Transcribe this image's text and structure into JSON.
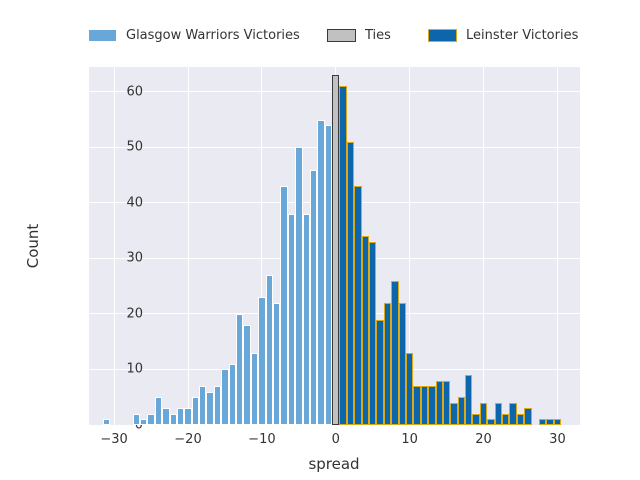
{
  "figure": {
    "background": "#ffffff",
    "plot_background": "#EAEAF2",
    "grid_color": "#ffffff",
    "text_color": "#333333"
  },
  "legend": {
    "items": [
      {
        "label": "Glasgow Warriors Victories",
        "fill": "#69A7D8",
        "edge": "#ffffff"
      },
      {
        "label": "Ties",
        "fill": "#C1C1C1",
        "edge": "#3A3A3A"
      },
      {
        "label": "Leinster Victories",
        "fill": "#0D66AA",
        "edge": "#DCA919"
      }
    ]
  },
  "axes": {
    "xlabel": "spread",
    "ylabel": "Count",
    "x_ticks": [
      {
        "v": -30,
        "label": "−30"
      },
      {
        "v": -20,
        "label": "−20"
      },
      {
        "v": -10,
        "label": "−10"
      },
      {
        "v": 0,
        "label": "0"
      },
      {
        "v": 10,
        "label": "10"
      },
      {
        "v": 20,
        "label": "20"
      },
      {
        "v": 30,
        "label": "30"
      }
    ],
    "y_ticks": [
      {
        "v": 0,
        "label": "0"
      },
      {
        "v": 10,
        "label": "10"
      },
      {
        "v": 20,
        "label": "20"
      },
      {
        "v": 30,
        "label": "30"
      },
      {
        "v": 40,
        "label": "40"
      },
      {
        "v": 50,
        "label": "50"
      },
      {
        "v": 60,
        "label": "60"
      }
    ]
  },
  "chart_data": {
    "type": "bar",
    "subtype": "histogram",
    "title": "",
    "xlabel": "spread",
    "ylabel": "Count",
    "xlim": [
      -33.4,
      33.05
    ],
    "ylim": [
      0,
      64.5
    ],
    "bin_width": 1,
    "grid": true,
    "legend_position": "top-outside",
    "series": [
      {
        "name": "Glasgow Warriors Victories",
        "fill": "#69A7D8",
        "edge": "#ffffff",
        "bins": [
          [
            -31,
            1
          ],
          [
            -27,
            2
          ],
          [
            -26,
            1
          ],
          [
            -25,
            2
          ],
          [
            -24,
            5
          ],
          [
            -23,
            3
          ],
          [
            -22,
            2
          ],
          [
            -21,
            3
          ],
          [
            -20,
            3
          ],
          [
            -19,
            5
          ],
          [
            -18,
            7
          ],
          [
            -17,
            6
          ],
          [
            -16,
            7
          ],
          [
            -15,
            10
          ],
          [
            -14,
            11
          ],
          [
            -13,
            20
          ],
          [
            -12,
            18
          ],
          [
            -11,
            13
          ],
          [
            -10,
            23
          ],
          [
            -9,
            27
          ],
          [
            -8,
            22
          ],
          [
            -7,
            43
          ],
          [
            -6,
            38
          ],
          [
            -5,
            50
          ],
          [
            -4,
            38
          ],
          [
            -3,
            46
          ],
          [
            -2,
            55
          ],
          [
            -1,
            54
          ]
        ]
      },
      {
        "name": "Ties",
        "fill": "#C1C1C1",
        "edge": "#3A3A3A",
        "bins": [
          [
            0,
            63
          ]
        ]
      },
      {
        "name": "Leinster Victories",
        "fill": "#0D66AA",
        "edge": "#DCA919",
        "bins": [
          [
            1,
            61
          ],
          [
            2,
            51
          ],
          [
            3,
            43
          ],
          [
            4,
            34
          ],
          [
            5,
            33
          ],
          [
            6,
            19
          ],
          [
            7,
            22
          ],
          [
            8,
            26
          ],
          [
            9,
            22
          ],
          [
            10,
            13
          ],
          [
            11,
            7
          ],
          [
            12,
            7
          ],
          [
            13,
            7
          ],
          [
            14,
            8
          ],
          [
            15,
            8
          ],
          [
            16,
            4
          ],
          [
            17,
            5
          ],
          [
            18,
            9
          ],
          [
            19,
            2
          ],
          [
            20,
            4
          ],
          [
            21,
            1
          ],
          [
            22,
            4
          ],
          [
            23,
            2
          ],
          [
            24,
            4
          ],
          [
            25,
            2
          ],
          [
            26,
            3
          ],
          [
            28,
            1
          ],
          [
            29,
            1
          ],
          [
            30,
            1
          ]
        ]
      }
    ]
  }
}
